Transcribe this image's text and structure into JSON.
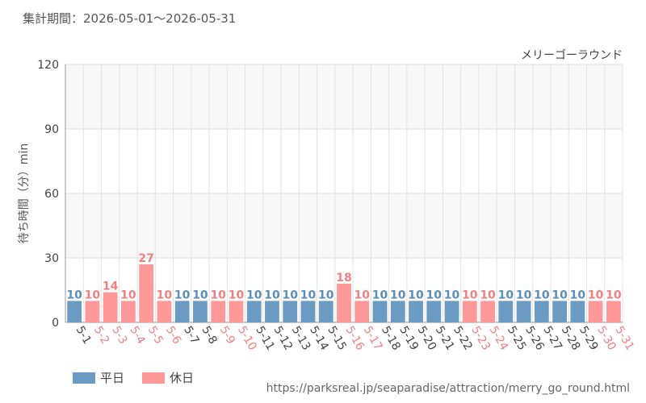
{
  "header": {
    "period": "集計期間：2026-05-01～2026-05-31"
  },
  "source_url": "https://parksreal.jp/seaparadise/attraction/merry_go_round.html",
  "colors": {
    "weekday": "#6b9bc3",
    "holiday": "#ff9999",
    "grid": "#e3e3e3",
    "plot_bg": "#f7f7f7"
  },
  "chart_data": {
    "type": "bar",
    "title": "メリーゴーラウンド",
    "ylabel": "待ち時間（分）min",
    "xlabel": "",
    "ylim": [
      0,
      120
    ],
    "yticks": [
      0,
      30,
      60,
      90,
      120
    ],
    "legend": [
      {
        "key": "weekday",
        "label": "平日"
      },
      {
        "key": "holiday",
        "label": "休日"
      }
    ],
    "categories": [
      "5-1",
      "5-2",
      "5-3",
      "5-4",
      "5-5",
      "5-6",
      "5-7",
      "5-8",
      "5-9",
      "5-10",
      "5-11",
      "5-12",
      "5-13",
      "5-14",
      "5-15",
      "5-16",
      "5-17",
      "5-18",
      "5-19",
      "5-20",
      "5-21",
      "5-22",
      "5-23",
      "5-24",
      "5-25",
      "5-26",
      "5-27",
      "5-28",
      "5-29",
      "5-30",
      "5-31"
    ],
    "values": [
      10,
      10,
      14,
      10,
      27,
      10,
      10,
      10,
      10,
      10,
      10,
      10,
      10,
      10,
      10,
      18,
      10,
      10,
      10,
      10,
      10,
      10,
      10,
      10,
      10,
      10,
      10,
      10,
      10,
      10,
      10
    ],
    "day_type": [
      "weekday",
      "holiday",
      "holiday",
      "holiday",
      "holiday",
      "holiday",
      "weekday",
      "weekday",
      "holiday",
      "holiday",
      "weekday",
      "weekday",
      "weekday",
      "weekday",
      "weekday",
      "holiday",
      "holiday",
      "weekday",
      "weekday",
      "weekday",
      "weekday",
      "weekday",
      "holiday",
      "holiday",
      "weekday",
      "weekday",
      "weekday",
      "weekday",
      "weekday",
      "holiday",
      "holiday"
    ]
  }
}
